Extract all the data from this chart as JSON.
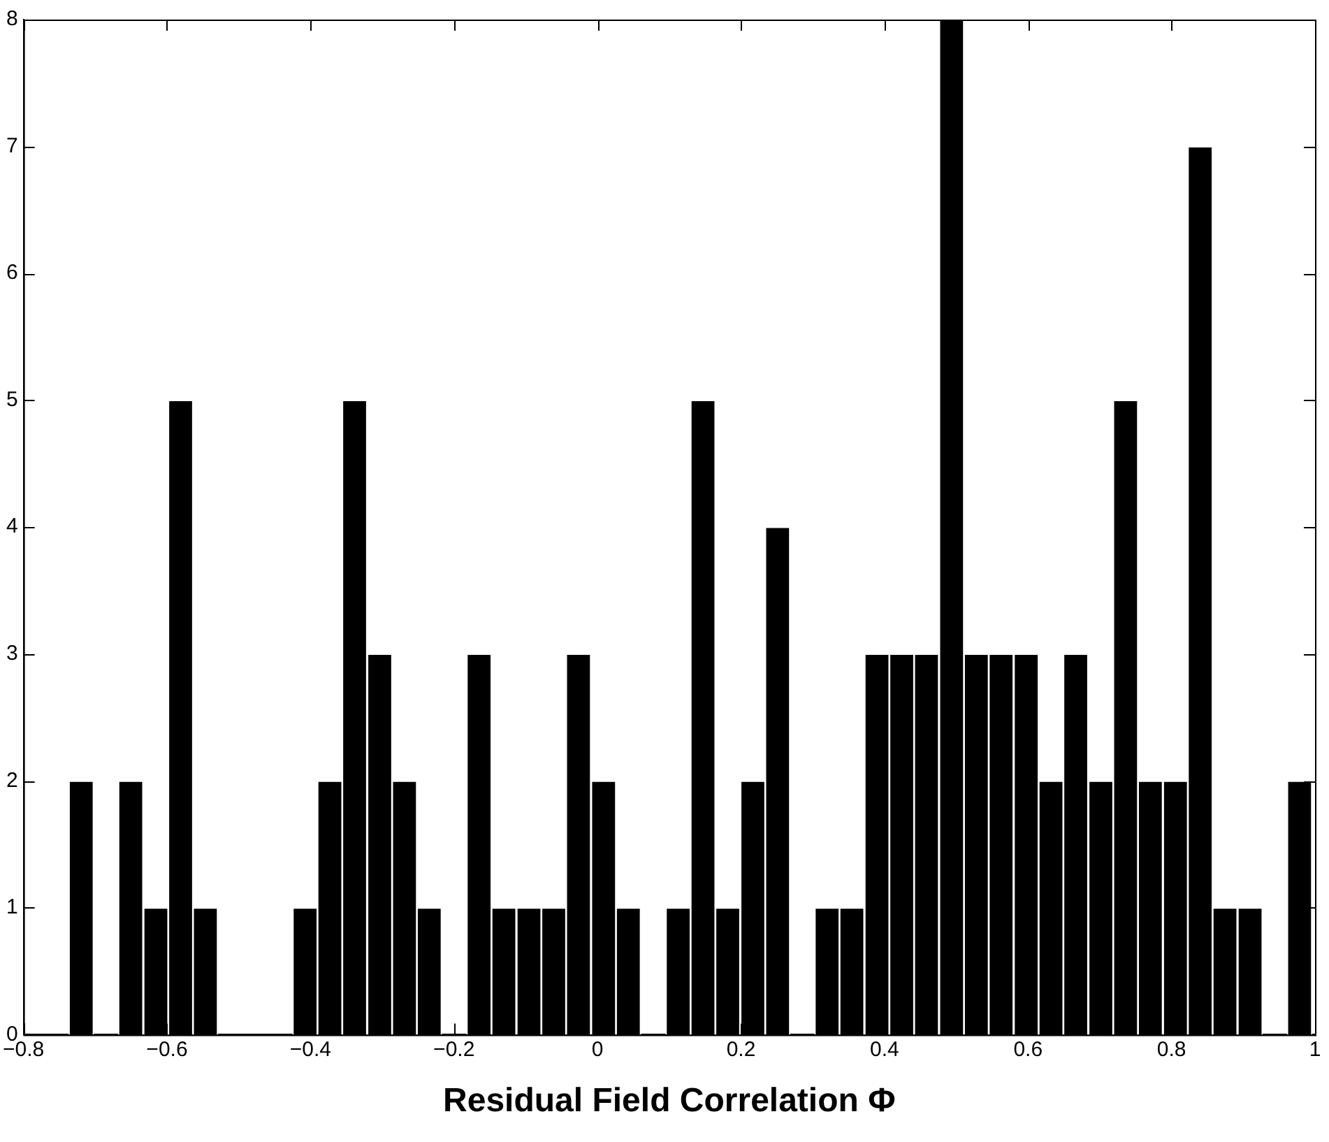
{
  "chart_data": {
    "type": "histogram",
    "xlabel": "Residual Field Correlation Φ",
    "bins": [
      -0.737,
      -0.702,
      -0.668,
      -0.633,
      -0.598,
      -0.564,
      -0.529,
      -0.494,
      -0.46,
      -0.425,
      -0.39,
      -0.356,
      -0.321,
      -0.286,
      -0.252,
      -0.217,
      -0.182,
      -0.148,
      -0.113,
      -0.078,
      -0.044,
      -0.009,
      0.026,
      0.06,
      0.095,
      0.13,
      0.164,
      0.199,
      0.234,
      0.268,
      0.303,
      0.337,
      0.372,
      0.407,
      0.441,
      0.476,
      0.511,
      0.545,
      0.58,
      0.615,
      0.649,
      0.684,
      0.719,
      0.753,
      0.788,
      0.823,
      0.857,
      0.892,
      0.927,
      0.961,
      0.996
    ],
    "values": [
      2,
      0,
      2,
      1,
      5,
      1,
      0,
      0,
      0,
      1,
      2,
      5,
      3,
      2,
      1,
      0,
      3,
      1,
      1,
      1,
      3,
      2,
      1,
      0,
      1,
      5,
      1,
      2,
      4,
      0,
      1,
      1,
      3,
      3,
      3,
      8,
      3,
      3,
      3,
      2,
      3,
      2,
      5,
      2,
      2,
      7,
      1,
      1,
      0,
      2
    ],
    "color": "#000000",
    "xlim": [
      -0.8,
      1
    ],
    "xticks": [
      {
        "value": -0.8,
        "label": "−0.8"
      },
      {
        "value": -0.6,
        "label": "−0.6"
      },
      {
        "value": -0.4,
        "label": "−0.4"
      },
      {
        "value": -0.2,
        "label": "−0.2"
      },
      0,
      0.2,
      0.4,
      0.6,
      0.8,
      1
    ],
    "ylim": [
      0,
      8
    ],
    "yticks": [
      0,
      1,
      2,
      3,
      4,
      5,
      6,
      7,
      8
    ],
    "grid": false,
    "legend": false
  }
}
